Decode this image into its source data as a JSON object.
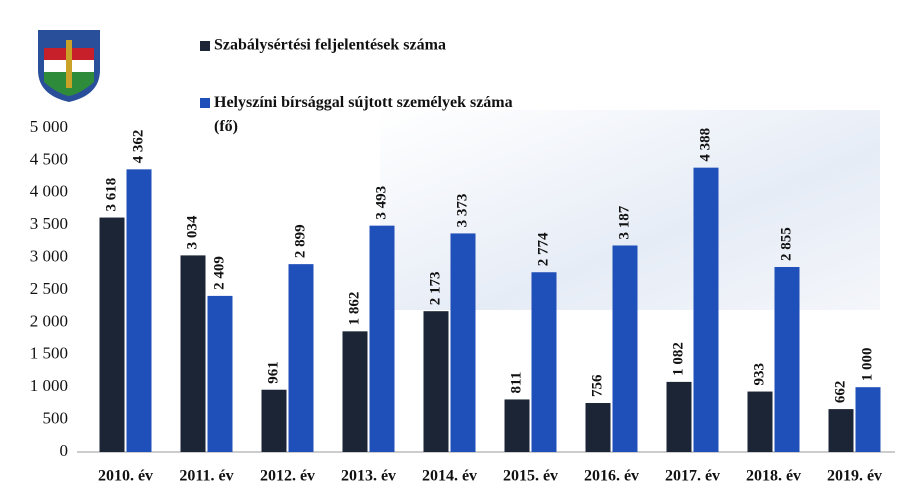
{
  "chart_data": {
    "type": "bar",
    "categories": [
      "2010. év",
      "2011. év",
      "2012. év",
      "2013. év",
      "2014. év",
      "2015. év",
      "2016. év",
      "2017. év",
      "2018. év",
      "2019. év"
    ],
    "series": [
      {
        "name": "Szabálysértési feljelentések száma",
        "color": "#1b2535",
        "values": [
          3618,
          3034,
          961,
          1862,
          2173,
          811,
          756,
          1082,
          933,
          662
        ],
        "value_labels": [
          "3 618",
          "3 034",
          "961",
          "1 862",
          "2 173",
          "811",
          "756",
          "1 082",
          "933",
          "662"
        ]
      },
      {
        "name": "Helyszíni bírsággal sújtott személyek száma (fő)",
        "color": "#1f4fb8",
        "values": [
          4362,
          2409,
          2899,
          3493,
          3373,
          2774,
          3187,
          4388,
          2855,
          1000
        ],
        "value_labels": [
          "4 362",
          "2 409",
          "2 899",
          "3 493",
          "3 373",
          "2 774",
          "3 187",
          "4 388",
          "2 855",
          "1 000"
        ]
      }
    ],
    "ylim": [
      0,
      5000
    ],
    "yticks": [
      0,
      500,
      {
        "value": 1000,
        "label": "1 000"
      },
      {
        "value": 1500,
        "label": "1 500"
      },
      {
        "value": 2000,
        "label": "2 000"
      },
      {
        "value": 2500,
        "label": "2 500"
      },
      {
        "value": 3000,
        "label": "3 000"
      },
      {
        "value": 3500,
        "label": "3 500"
      },
      {
        "value": 4000,
        "label": "4 000"
      },
      {
        "value": 4500,
        "label": "4 500"
      },
      {
        "value": 5000,
        "label": "5 000"
      }
    ],
    "legend": "top"
  }
}
